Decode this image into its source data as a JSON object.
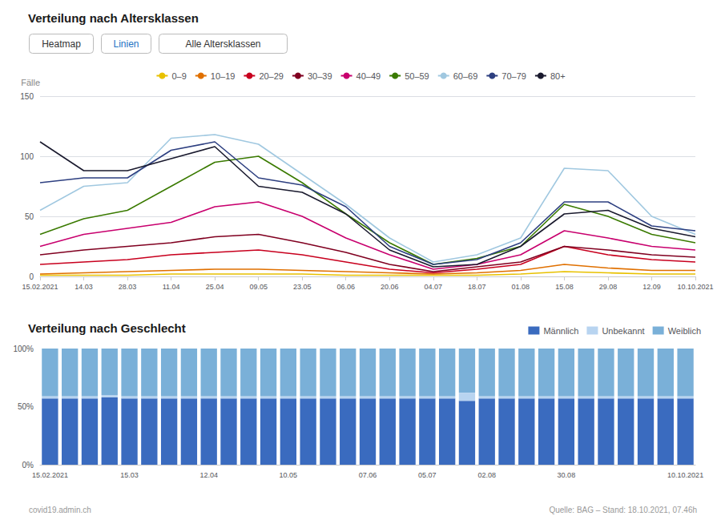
{
  "chart_data": [
    {
      "type": "line",
      "title": "Verteilung nach Altersklassen",
      "ylabel": "Fälle",
      "annotations": [
        "Heatmap",
        "Linien",
        "Alle Altersklassen"
      ],
      "categories": [
        "15.02.2021",
        "14.03",
        "28.03",
        "11.04",
        "25.04",
        "09.05",
        "23.05",
        "06.06",
        "20.06",
        "04.07",
        "18.07",
        "01.08",
        "15.08",
        "29.08",
        "12.09",
        "10.10.2021"
      ],
      "series": [
        {
          "name": "0–9",
          "color": "#e8c100",
          "values": [
            1,
            1,
            1,
            2,
            2,
            2,
            2,
            1,
            1,
            1,
            1,
            2,
            4,
            3,
            2,
            2
          ]
        },
        {
          "name": "10–19",
          "color": "#e07000",
          "values": [
            2,
            3,
            4,
            5,
            6,
            6,
            5,
            4,
            3,
            2,
            3,
            5,
            10,
            7,
            5,
            5
          ]
        },
        {
          "name": "20–29",
          "color": "#c8001e",
          "values": [
            10,
            12,
            14,
            18,
            20,
            22,
            18,
            12,
            6,
            3,
            6,
            10,
            25,
            18,
            14,
            12
          ]
        },
        {
          "name": "30–39",
          "color": "#800020",
          "values": [
            18,
            22,
            25,
            28,
            33,
            35,
            28,
            20,
            10,
            4,
            8,
            12,
            25,
            22,
            18,
            16
          ]
        },
        {
          "name": "40–49",
          "color": "#c8006e",
          "values": [
            25,
            35,
            40,
            45,
            58,
            62,
            50,
            32,
            18,
            6,
            10,
            18,
            38,
            32,
            25,
            22
          ]
        },
        {
          "name": "50–59",
          "color": "#3a7a00",
          "values": [
            35,
            48,
            55,
            75,
            95,
            100,
            78,
            52,
            28,
            10,
            15,
            25,
            60,
            50,
            35,
            28
          ]
        },
        {
          "name": "60–69",
          "color": "#a0c8e0",
          "values": [
            55,
            75,
            78,
            115,
            118,
            110,
            85,
            60,
            32,
            12,
            18,
            32,
            90,
            88,
            50,
            35
          ]
        },
        {
          "name": "70–79",
          "color": "#2d3f80",
          "values": [
            78,
            82,
            82,
            105,
            112,
            82,
            76,
            58,
            25,
            10,
            14,
            28,
            62,
            62,
            42,
            38
          ]
        },
        {
          "name": "80+",
          "color": "#1a1a2e",
          "values": [
            112,
            88,
            88,
            98,
            108,
            75,
            70,
            52,
            22,
            8,
            10,
            25,
            52,
            55,
            40,
            33
          ]
        }
      ],
      "ylim": [
        0,
        150
      ],
      "yticks": [
        0,
        50,
        100,
        150
      ],
      "grid": true,
      "legend": "top"
    },
    {
      "type": "bar",
      "title": "Verteilung nach Geschlecht",
      "annotations": [
        "covid19.admin.ch",
        "Quelle: BAG – Stand: 18.10.2021, 07.46h"
      ],
      "stacked": true,
      "categories": [
        "15.02.2021",
        null,
        null,
        null,
        "15.03",
        null,
        null,
        null,
        "12.04",
        null,
        null,
        null,
        "10.05",
        null,
        null,
        null,
        "07.06",
        null,
        null,
        "05.07",
        null,
        null,
        "02.08",
        null,
        null,
        null,
        "30.08",
        null,
        null,
        null,
        null,
        null,
        "10.10.2021"
      ],
      "series": [
        {
          "name": "Männlich",
          "color": "#3a6bbf",
          "values": [
            0.57,
            0.57,
            0.57,
            0.58,
            0.57,
            0.57,
            0.57,
            0.57,
            0.57,
            0.57,
            0.57,
            0.57,
            0.57,
            0.57,
            0.57,
            0.57,
            0.57,
            0.57,
            0.57,
            0.57,
            0.57,
            0.55,
            0.57,
            0.57,
            0.57,
            0.57,
            0.57,
            0.57,
            0.57,
            0.57,
            0.57,
            0.57,
            0.57
          ]
        },
        {
          "name": "Unbekannt",
          "color": "#b8d4f0",
          "values": [
            0.02,
            0.02,
            0.02,
            0.02,
            0.02,
            0.02,
            0.02,
            0.02,
            0.02,
            0.02,
            0.02,
            0.02,
            0.02,
            0.02,
            0.02,
            0.02,
            0.02,
            0.02,
            0.02,
            0.02,
            0.02,
            0.07,
            0.02,
            0.02,
            0.02,
            0.02,
            0.02,
            0.02,
            0.02,
            0.02,
            0.02,
            0.02,
            0.02
          ]
        },
        {
          "name": "Weiblich",
          "color": "#7ab0d8",
          "values": [
            0.41,
            0.41,
            0.41,
            0.4,
            0.41,
            0.41,
            0.41,
            0.41,
            0.41,
            0.41,
            0.41,
            0.41,
            0.41,
            0.41,
            0.41,
            0.41,
            0.41,
            0.41,
            0.41,
            0.41,
            0.41,
            0.38,
            0.41,
            0.41,
            0.41,
            0.41,
            0.41,
            0.41,
            0.41,
            0.41,
            0.41,
            0.41,
            0.41
          ]
        }
      ],
      "ylim": [
        0,
        1.0
      ],
      "yticks": [
        {
          "value": 0,
          "label": "0%"
        },
        {
          "value": 0.5,
          "label": "50%"
        },
        {
          "value": 1.0,
          "label": "100%"
        }
      ],
      "grid": false,
      "legend": "right"
    }
  ]
}
